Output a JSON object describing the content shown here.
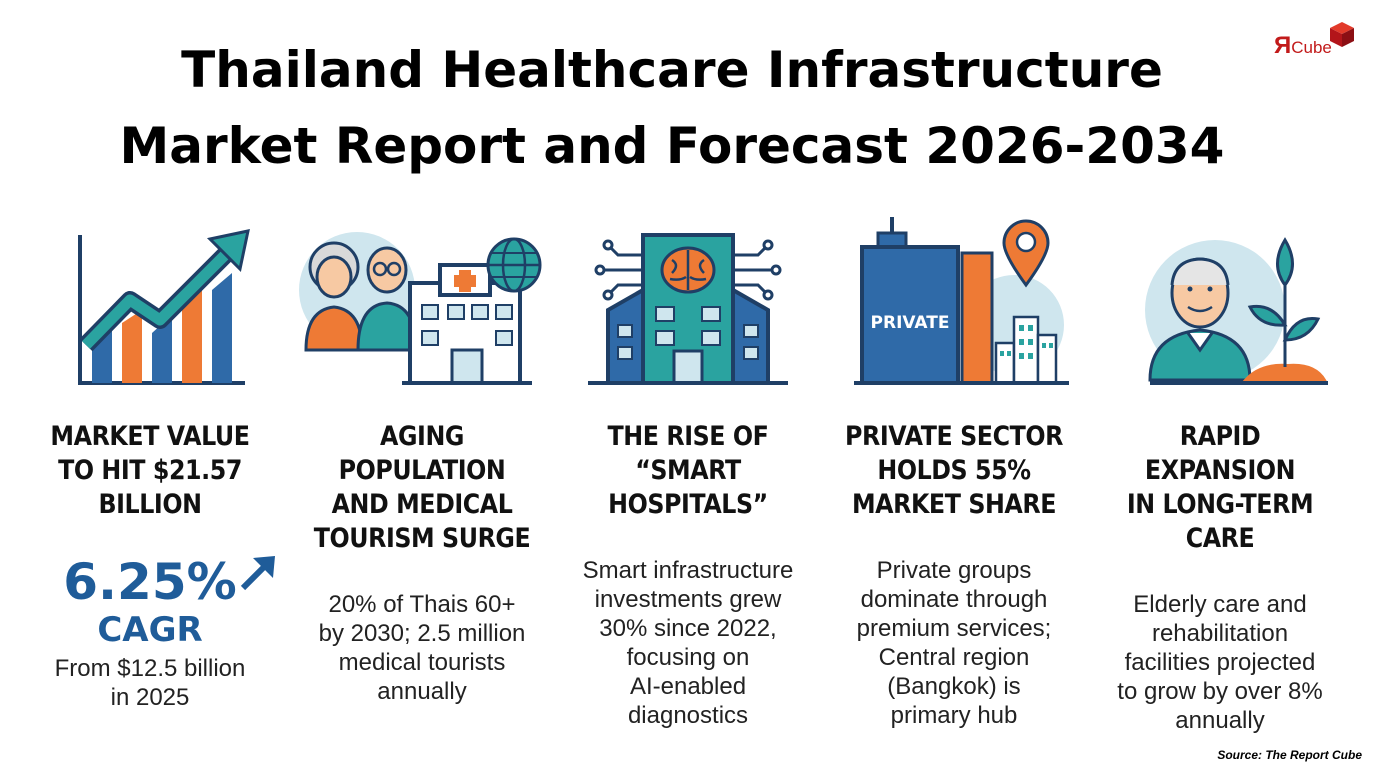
{
  "title": {
    "line1": "Thailand Healthcare Infrastructure",
    "line2": "Market Report and Forecast 2026-2034"
  },
  "logo": {
    "letter": "Я",
    "text": "Cube"
  },
  "columns": [
    {
      "icon": "growth-chart-icon",
      "heading": [
        "MARKET VALUE",
        "TO HIT $21.57",
        "BILLION"
      ],
      "stat_value": "6.25%",
      "stat_label": "CAGR",
      "body": [
        "From $12.5 billion",
        "in 2025"
      ]
    },
    {
      "icon": "elderly-couple-hospital-icon",
      "heading": [
        "AGING POPULATION",
        "AND MEDICAL",
        "TOURISM SURGE"
      ],
      "body": [
        "20% of Thais 60+",
        "by 2030; 2.5 million",
        "medical tourists",
        "annually"
      ]
    },
    {
      "icon": "smart-hospital-icon",
      "heading": [
        "THE RISE OF",
        "“SMART",
        "HOSPITALS”"
      ],
      "body": [
        "Smart infrastructure",
        "investments grew",
        "30% since 2022,",
        "focusing on",
        "AI-enabled",
        "diagnostics"
      ]
    },
    {
      "icon": "private-building-icon",
      "icon_label": "PRIVATE",
      "heading": [
        "PRIVATE SECTOR",
        "HOLDS 55%",
        "MARKET SHARE"
      ],
      "body": [
        "Private groups",
        "dominate through",
        "premium services;",
        "Central region",
        "(Bangkok) is",
        "primary hub"
      ]
    },
    {
      "icon": "elderly-care-plant-icon",
      "heading": [
        "RAPID EXPANSION",
        "IN LONG-TERM",
        "CARE"
      ],
      "body": [
        "Elderly care and",
        "rehabilitation",
        "facilities projected",
        "to grow by over 8%",
        "annually"
      ]
    }
  ],
  "source": "Source: The Report Cube",
  "colors": {
    "navy": "#1f3f66",
    "blue": "#2f6aa8",
    "teal": "#2aa3a0",
    "orange": "#ee7a35",
    "lightblue": "#cfe6ee",
    "logo_red": "#c21a1a"
  }
}
